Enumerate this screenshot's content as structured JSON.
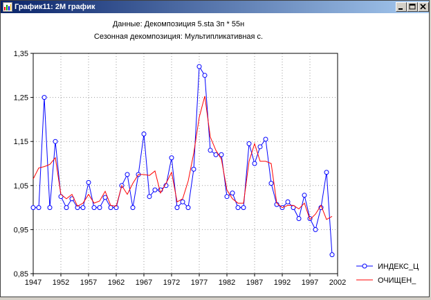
{
  "window": {
    "title": "График11: 2М график",
    "icon": "statistica-graph-icon",
    "controls": [
      "minimize",
      "maximize",
      "close"
    ],
    "titlebar_color": "#0a246a"
  },
  "chart_data": {
    "type": "line",
    "title": "Данные: Декомпозиция 5.sta 3п * 55н",
    "subtitle": "Сезонная декомпозиция: Мультипликативная с.",
    "xlabel": "",
    "ylabel": "",
    "xlim": [
      1947,
      2002
    ],
    "ylim": [
      0.85,
      1.35
    ],
    "x_ticks": [
      "1947",
      "1952",
      "1957",
      "1962",
      "1967",
      "1972",
      "1977",
      "1982",
      "1987",
      "1992",
      "1997",
      "2002"
    ],
    "y_ticks": [
      "0,85",
      "0,95",
      "1,05",
      "1,15",
      "1,25",
      "1,35"
    ],
    "grid": true,
    "legend_position": "right-bottom",
    "series": [
      {
        "name": "ИНДЕКС_Ц",
        "color": "#0000ff",
        "marker": "circle",
        "x": [
          1947,
          1948,
          1949,
          1950,
          1951,
          1952,
          1953,
          1954,
          1955,
          1956,
          1957,
          1958,
          1959,
          1960,
          1961,
          1962,
          1963,
          1964,
          1965,
          1966,
          1967,
          1968,
          1969,
          1970,
          1971,
          1972,
          1973,
          1974,
          1975,
          1976,
          1977,
          1978,
          1979,
          1980,
          1981,
          1982,
          1983,
          1984,
          1985,
          1986,
          1987,
          1988,
          1989,
          1990,
          1991,
          1992,
          1993,
          1994,
          1995,
          1996,
          1997,
          1998,
          1999,
          2000,
          2001
        ],
        "values": [
          1.0,
          1.0,
          1.25,
          1.0,
          1.15,
          1.025,
          1.0,
          1.02,
          1.0,
          1.0,
          1.057,
          1.0,
          1.0,
          1.023,
          1.0,
          1.0,
          1.05,
          1.075,
          1.0,
          1.075,
          1.167,
          1.025,
          1.04,
          1.04,
          1.05,
          1.113,
          1.0,
          1.013,
          1.0,
          1.087,
          1.32,
          1.3,
          1.13,
          1.12,
          1.12,
          1.025,
          1.033,
          1.0,
          1.0,
          1.145,
          1.1,
          1.138,
          1.155,
          1.055,
          1.007,
          1.0,
          1.013,
          1.0,
          0.975,
          1.028,
          0.975,
          0.95,
          1.0,
          1.08,
          0.893
        ]
      },
      {
        "name": "ОЧИЩЕН_",
        "color": "#ff0000",
        "marker": "none",
        "x": [
          1947,
          1948,
          1949,
          1950,
          1951,
          1952,
          1953,
          1954,
          1955,
          1956,
          1957,
          1958,
          1959,
          1960,
          1961,
          1962,
          1963,
          1964,
          1965,
          1966,
          1967,
          1968,
          1969,
          1970,
          1971,
          1972,
          1973,
          1974,
          1975,
          1976,
          1977,
          1978,
          1979,
          1980,
          1981,
          1982,
          1983,
          1984,
          1985,
          1986,
          1987,
          1988,
          1989,
          1990,
          1991,
          1992,
          1993,
          1994,
          1995,
          1996,
          1997,
          1998,
          1999,
          2000,
          2001
        ],
        "values": [
          1.065,
          1.09,
          1.093,
          1.098,
          1.113,
          1.03,
          1.02,
          1.03,
          1.003,
          1.01,
          1.03,
          1.01,
          1.015,
          1.037,
          1.005,
          1.003,
          1.05,
          1.03,
          1.055,
          1.075,
          1.075,
          1.073,
          1.083,
          1.033,
          1.055,
          1.08,
          1.013,
          1.02,
          1.06,
          1.123,
          1.205,
          1.253,
          1.16,
          1.13,
          1.11,
          1.04,
          1.02,
          1.01,
          1.01,
          1.105,
          1.145,
          1.105,
          1.105,
          1.1,
          1.01,
          1.0,
          1.005,
          1.005,
          0.997,
          1.01,
          0.973,
          0.985,
          1.005,
          0.973,
          0.98
        ]
      }
    ]
  }
}
